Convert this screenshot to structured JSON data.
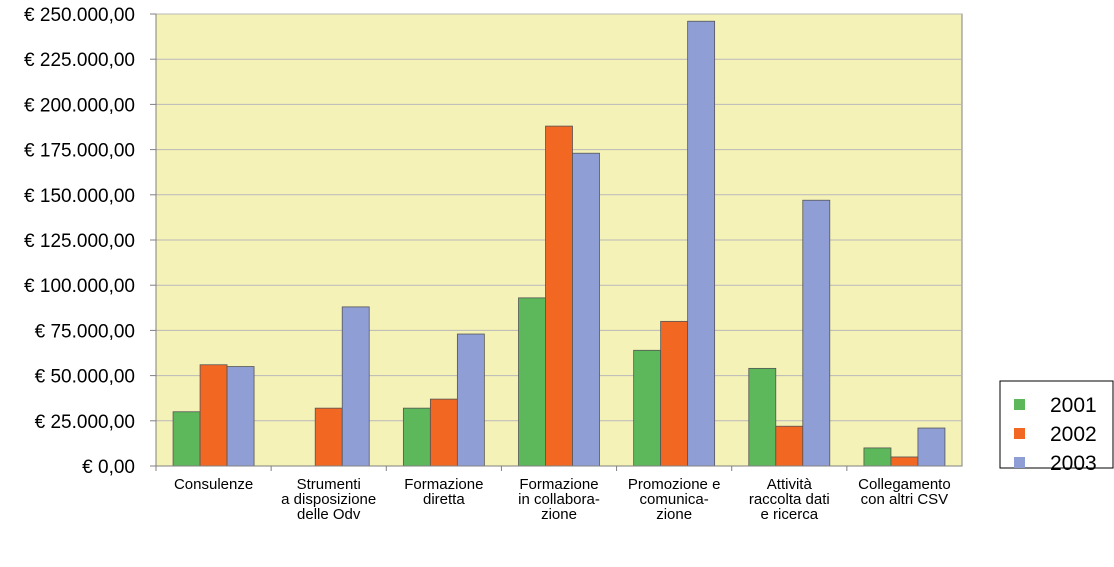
{
  "chart_data": {
    "type": "bar",
    "title": "",
    "xlabel": "",
    "ylabel": "",
    "ylim": [
      0,
      250000
    ],
    "y_tick_values": [
      0,
      25000,
      50000,
      75000,
      100000,
      125000,
      150000,
      175000,
      200000,
      225000,
      250000
    ],
    "y_tick_labels": [
      "€ 0,00",
      "€ 25.000,00",
      "€ 50.000,00",
      "€ 75.000,00",
      "€ 100.000,00",
      "€ 125.000,00",
      "€ 150.000,00",
      "€ 175.000,00",
      "€ 200.000,00",
      "€ 225.000,00",
      "€ 250.000,00"
    ],
    "grid": true,
    "legend_position": "right",
    "categories": [
      [
        "Consulenze"
      ],
      [
        "Strumenti",
        "a disposizione",
        "delle Odv"
      ],
      [
        "Formazione",
        "diretta"
      ],
      [
        "Formazione",
        "in collabora-",
        "zione"
      ],
      [
        "Promozione e",
        "comunica-",
        "zione"
      ],
      [
        "Attività",
        "raccolta dati",
        "e ricerca"
      ],
      [
        "Collegamento",
        "con altri CSV"
      ]
    ],
    "series": [
      {
        "name": "2001",
        "color": "#5cb85a",
        "values": [
          30000,
          0,
          32000,
          93000,
          64000,
          54000,
          10000
        ]
      },
      {
        "name": "2002",
        "color": "#f26722",
        "values": [
          56000,
          32000,
          37000,
          188000,
          80000,
          22000,
          5000
        ]
      },
      {
        "name": "2003",
        "color": "#8f9fd6",
        "values": [
          55000,
          88000,
          73000,
          173000,
          246000,
          147000,
          21000
        ]
      }
    ],
    "colors": {
      "plot_background": "#f5f2b8",
      "gridline": "#b8b8b8",
      "axis": "#808080"
    }
  }
}
